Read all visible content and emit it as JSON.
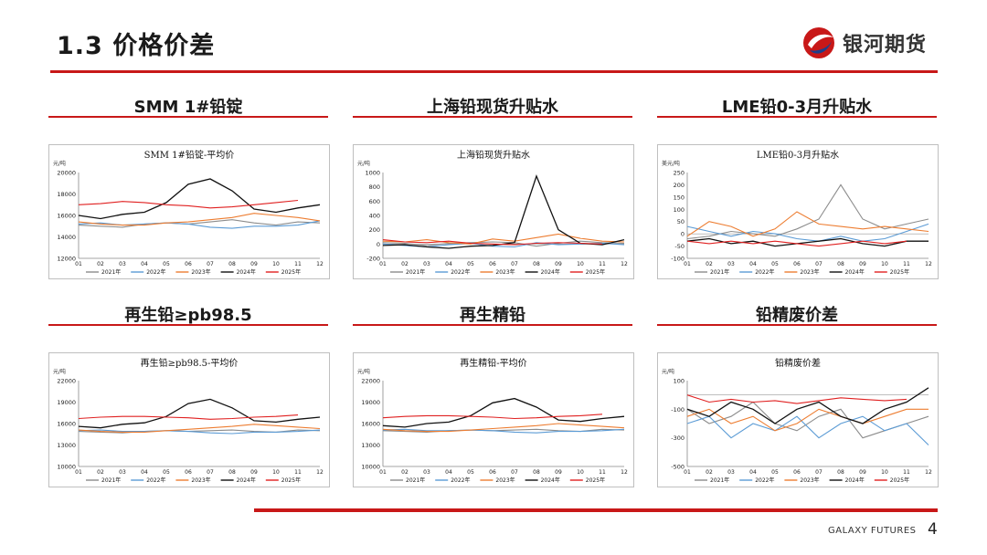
{
  "header": {
    "title": "1.3  价格价差",
    "logo_text": "银河期货"
  },
  "footer": {
    "brand": "GALAXY FUTURES",
    "page_number": "4"
  },
  "legend_years": [
    "2021年",
    "2022年",
    "2023年",
    "2024年",
    "2025年"
  ],
  "series_colors": {
    "2021年": "#8c8c8c",
    "2022年": "#5b9bd5",
    "2023年": "#ed7d31",
    "2024年": "#111111",
    "2025年": "#e02020"
  },
  "x_ticks": [
    "01",
    "02",
    "03",
    "04",
    "05",
    "06",
    "07",
    "08",
    "09",
    "10",
    "11",
    "12"
  ],
  "chart_data": [
    {
      "type": "line",
      "panel_title": "SMM 1#铅锭",
      "title": "SMM 1#铅锭-平均价",
      "ylabel": "元/吨",
      "ylim": [
        12000,
        20000
      ],
      "yticks": [
        12000,
        14000,
        16000,
        18000,
        20000
      ],
      "series": [
        {
          "name": "2021年",
          "values": [
            15100,
            15000,
            14900,
            15200,
            15300,
            15200,
            15400,
            15600,
            15300,
            15100,
            15400,
            15300
          ]
        },
        {
          "name": "2022年",
          "values": [
            15200,
            15300,
            15100,
            15200,
            15300,
            15200,
            14900,
            14800,
            15000,
            15000,
            15100,
            15500
          ]
        },
        {
          "name": "2023年",
          "values": [
            15400,
            15200,
            15100,
            15100,
            15300,
            15400,
            15600,
            15800,
            16200,
            16000,
            15800,
            15500
          ]
        },
        {
          "name": "2024年",
          "values": [
            16000,
            15700,
            16100,
            16300,
            17200,
            18900,
            19400,
            18300,
            16600,
            16300,
            16700,
            17000
          ]
        },
        {
          "name": "2025年",
          "values": [
            17000,
            17100,
            17300,
            17200,
            17000,
            16900,
            16700,
            16800,
            17000,
            17200,
            17400
          ]
        }
      ]
    },
    {
      "type": "line",
      "panel_title": "上海铅现货升贴水",
      "title": "上海铅现货升贴水",
      "ylabel": "元/吨",
      "ylim": [
        -200,
        1000
      ],
      "yticks": [
        -200,
        0,
        200,
        400,
        600,
        800,
        1000
      ],
      "series": [
        {
          "name": "2021年",
          "values": [
            20,
            10,
            -20,
            10,
            20,
            30,
            20,
            -30,
            10,
            40,
            20,
            10
          ]
        },
        {
          "name": "2022年",
          "values": [
            0,
            -20,
            -40,
            -10,
            10,
            -30,
            -40,
            20,
            -10,
            0,
            10,
            -10
          ]
        },
        {
          "name": "2023年",
          "values": [
            40,
            30,
            60,
            20,
            0,
            70,
            40,
            90,
            140,
            80,
            40,
            30
          ]
        },
        {
          "name": "2024年",
          "values": [
            -20,
            -10,
            -40,
            -60,
            -30,
            -20,
            20,
            950,
            200,
            10,
            -10,
            60
          ]
        },
        {
          "name": "2025年",
          "values": [
            60,
            30,
            20,
            40,
            10,
            0,
            -10,
            10,
            20,
            10,
            0
          ]
        }
      ]
    },
    {
      "type": "line",
      "panel_title": "LME铅0-3月升贴水",
      "title": "LME铅0-3月升贴水",
      "ylabel": "美元/吨",
      "ylim": [
        -100,
        250
      ],
      "yticks": [
        -100,
        -50,
        0,
        50,
        100,
        150,
        200,
        250
      ],
      "series": [
        {
          "name": "2021年",
          "values": [
            -20,
            -10,
            10,
            0,
            -10,
            20,
            60,
            200,
            60,
            20,
            40,
            60
          ]
        },
        {
          "name": "2022年",
          "values": [
            30,
            10,
            -10,
            10,
            0,
            -20,
            -30,
            -10,
            -30,
            -20,
            10,
            40
          ]
        },
        {
          "name": "2023年",
          "values": [
            -10,
            50,
            30,
            -10,
            20,
            90,
            40,
            30,
            20,
            30,
            20,
            10
          ]
        },
        {
          "name": "2024年",
          "values": [
            -30,
            -20,
            -40,
            -30,
            -50,
            -40,
            -30,
            -20,
            -40,
            -50,
            -30,
            -30
          ]
        },
        {
          "name": "2025年",
          "values": [
            -30,
            -40,
            -30,
            -40,
            -30,
            -40,
            -50,
            -40,
            -30,
            -40,
            -30
          ]
        }
      ]
    },
    {
      "type": "line",
      "panel_title": "再生铅≥pb98.5",
      "title": "再生铅≥pb98.5-平均价",
      "ylabel": "元/吨",
      "ylim": [
        10000,
        22000
      ],
      "yticks": [
        10000,
        13000,
        16000,
        19000,
        22000
      ],
      "series": [
        {
          "name": "2021年",
          "values": [
            14900,
            14800,
            14700,
            14900,
            15000,
            14900,
            15000,
            15100,
            14900,
            14800,
            15100,
            15000
          ]
        },
        {
          "name": "2022年",
          "values": [
            15000,
            15100,
            14900,
            14900,
            15000,
            14900,
            14700,
            14600,
            14800,
            14800,
            14900,
            15100
          ]
        },
        {
          "name": "2023年",
          "values": [
            15100,
            14900,
            14800,
            14800,
            15000,
            15200,
            15400,
            15600,
            15900,
            15700,
            15500,
            15300
          ]
        },
        {
          "name": "2024年",
          "values": [
            15600,
            15400,
            15900,
            16100,
            17000,
            18800,
            19400,
            18200,
            16400,
            16200,
            16600,
            16900
          ]
        },
        {
          "name": "2025年",
          "values": [
            16700,
            16900,
            17000,
            17000,
            16900,
            16800,
            16600,
            16700,
            16900,
            17000,
            17200
          ]
        }
      ]
    },
    {
      "type": "line",
      "panel_title": "再生精铅",
      "title": "再生精铅-平均价",
      "ylabel": "元/吨",
      "ylim": [
        10000,
        22000
      ],
      "yticks": [
        10000,
        13000,
        16000,
        19000,
        22000
      ],
      "series": [
        {
          "name": "2021年",
          "values": [
            15000,
            14900,
            14800,
            15000,
            15100,
            15000,
            15100,
            15200,
            15000,
            14900,
            15200,
            15100
          ]
        },
        {
          "name": "2022年",
          "values": [
            15100,
            15200,
            15000,
            15000,
            15100,
            15000,
            14800,
            14700,
            14900,
            14900,
            15000,
            15200
          ]
        },
        {
          "name": "2023年",
          "values": [
            15200,
            15000,
            14900,
            14900,
            15100,
            15300,
            15500,
            15700,
            16000,
            15800,
            15600,
            15400
          ]
        },
        {
          "name": "2024年",
          "values": [
            15700,
            15500,
            16000,
            16200,
            17100,
            18900,
            19500,
            18300,
            16500,
            16300,
            16700,
            17000
          ]
        },
        {
          "name": "2025年",
          "values": [
            16800,
            17000,
            17100,
            17100,
            17000,
            16900,
            16700,
            16800,
            17000,
            17100,
            17300
          ]
        }
      ]
    },
    {
      "type": "line",
      "panel_title": "铅精废价差",
      "title": "铅精废价差",
      "ylabel": "元/吨",
      "ylim": [
        -500,
        100
      ],
      "yticks": [
        -500,
        -300,
        -100,
        100
      ],
      "series": [
        {
          "name": "2021年",
          "values": [
            -100,
            -200,
            -150,
            -50,
            -200,
            -250,
            -150,
            -100,
            -300,
            -250,
            -200,
            -150
          ]
        },
        {
          "name": "2022年",
          "values": [
            -200,
            -150,
            -300,
            -200,
            -250,
            -150,
            -300,
            -200,
            -150,
            -250,
            -200,
            -350
          ]
        },
        {
          "name": "2023年",
          "values": [
            -150,
            -100,
            -200,
            -150,
            -250,
            -200,
            -100,
            -150,
            -200,
            -150,
            -100,
            -100
          ]
        },
        {
          "name": "2024年",
          "values": [
            -100,
            -150,
            -50,
            -100,
            -200,
            -100,
            -50,
            -150,
            -200,
            -100,
            -50,
            50
          ]
        },
        {
          "name": "2025年",
          "values": [
            0,
            -50,
            -30,
            -50,
            -40,
            -60,
            -40,
            -20,
            -30,
            -40,
            -30
          ]
        }
      ]
    }
  ]
}
